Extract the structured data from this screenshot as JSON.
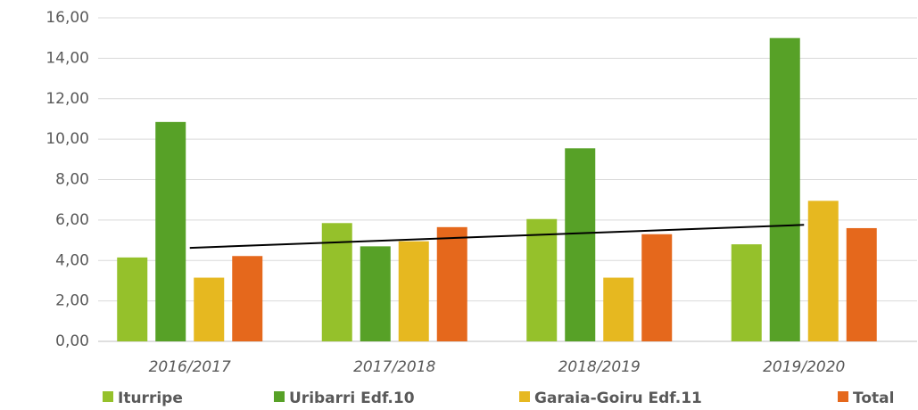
{
  "chart_data": {
    "type": "bar",
    "categories": [
      "2016/2017",
      "2017/2018",
      "2018/2019",
      "2019/2020"
    ],
    "series": [
      {
        "name": "Iturripe",
        "color": "#95c12b",
        "values": [
          4.15,
          5.85,
          6.05,
          4.8
        ]
      },
      {
        "name": "Uribarri Edf.10",
        "color": "#57a127",
        "values": [
          10.85,
          4.7,
          9.55,
          15.0
        ]
      },
      {
        "name": "Garaia-Goiru Edf.11",
        "color": "#e6b820",
        "values": [
          3.15,
          4.95,
          3.15,
          6.95
        ]
      },
      {
        "name": "Total",
        "color": "#e5681c",
        "values": [
          4.22,
          5.65,
          5.3,
          5.6
        ],
        "trendline": "linear",
        "trendline_color": "#000000"
      }
    ],
    "ylim": [
      0,
      16
    ],
    "yticks": [
      {
        "value": 0,
        "label": "0,00"
      },
      {
        "value": 2,
        "label": "2,00"
      },
      {
        "value": 4,
        "label": "4,00"
      },
      {
        "value": 6,
        "label": "6,00"
      },
      {
        "value": 8,
        "label": "8,00"
      },
      {
        "value": 10,
        "label": "10,00"
      },
      {
        "value": 12,
        "label": "12,00"
      },
      {
        "value": 14,
        "label": "14,00"
      },
      {
        "value": 16,
        "label": "16,00"
      }
    ],
    "grid": true,
    "legend": "bottom"
  }
}
